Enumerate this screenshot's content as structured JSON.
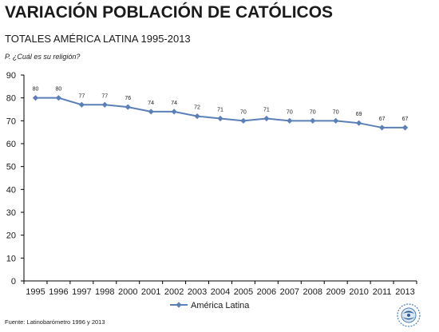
{
  "title": "VARIACIÓN POBLACIÓN DE CATÓLICOS",
  "subtitle": "TOTALES  AMÉRICA LATINA  1995-2013",
  "question": "P. ¿Cuál  es su religión?",
  "source": "Fuente:  Latinobarómetro   1996  y 2013",
  "colors": {
    "series": "#5b80b8",
    "axis": "#000000",
    "text": "#1a1a1a"
  },
  "chart_data": {
    "type": "line",
    "categories": [
      "1995",
      "1996",
      "1997",
      "1998",
      "2000",
      "2001",
      "2002",
      "2003",
      "2004",
      "2005",
      "2006",
      "2007",
      "2008",
      "2009",
      "2010",
      "2011",
      "2013"
    ],
    "series": [
      {
        "name": "América Latina",
        "values": [
          80,
          80,
          77,
          77,
          76,
          74,
          74,
          72,
          71,
          70,
          71,
          70,
          70,
          70,
          69,
          67,
          67
        ]
      }
    ],
    "ylim": [
      0,
      90
    ],
    "yticks": [
      0,
      10,
      20,
      30,
      40,
      50,
      60,
      70,
      80,
      90
    ],
    "grid": false,
    "data_labels": true,
    "legend": "bottom",
    "marker": "diamond"
  }
}
